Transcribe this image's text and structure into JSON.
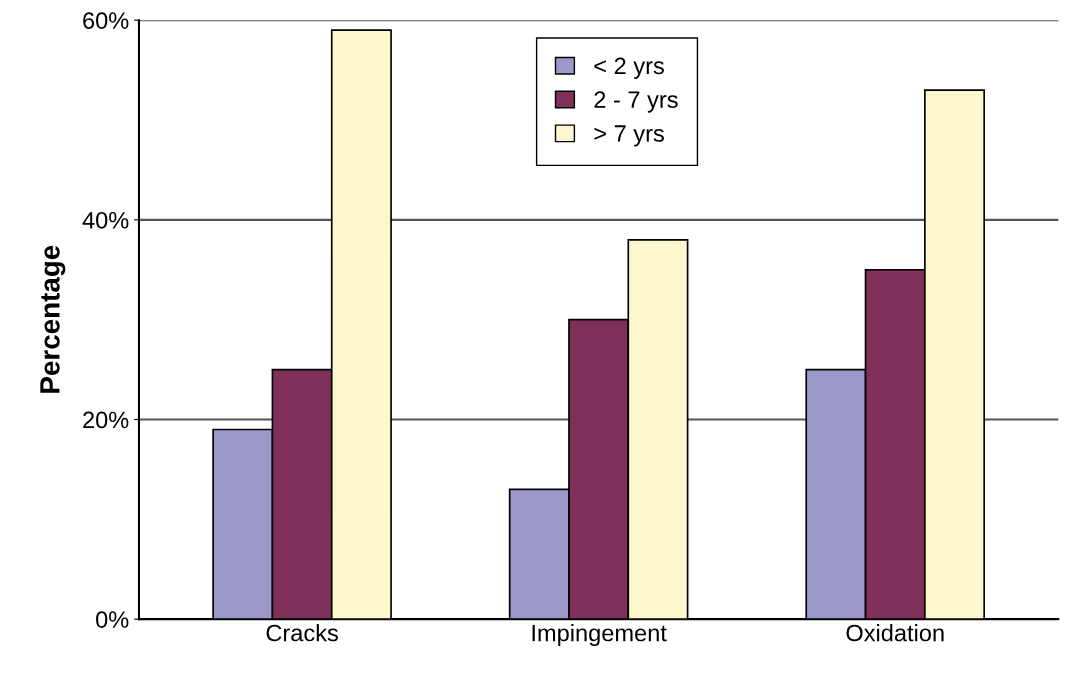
{
  "chart_data": {
    "type": "bar",
    "ylabel": "Percentage",
    "categories": [
      "Cracks",
      "Impingement",
      "Oxidation"
    ],
    "series": [
      {
        "name": "< 2 yrs",
        "color": "#9a99c9",
        "values": [
          19,
          13,
          25
        ]
      },
      {
        "name": "2 - 7 yrs",
        "color": "#7e2f5a",
        "values": [
          25,
          30,
          35
        ]
      },
      {
        "name": "> 7 yrs",
        "color": "#fcf7cc",
        "values": [
          59,
          38,
          53
        ]
      }
    ],
    "ylim": [
      0,
      60
    ],
    "yticks": [
      {
        "value": 0,
        "label": "0%"
      },
      {
        "value": 20,
        "label": "20%"
      },
      {
        "value": 40,
        "label": "40%"
      },
      {
        "value": 60,
        "label": "60%"
      }
    ],
    "grid": "y",
    "legend": "top"
  }
}
